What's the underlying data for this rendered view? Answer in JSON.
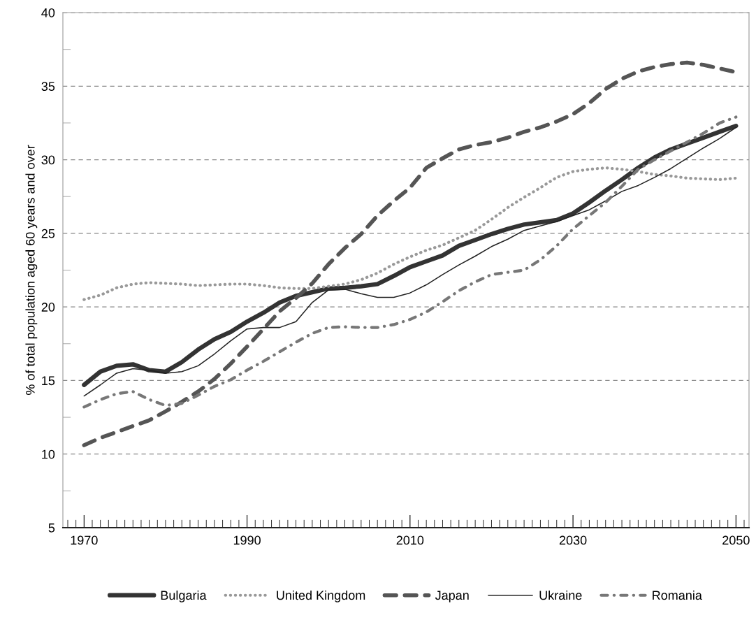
{
  "chart_data": {
    "type": "line",
    "ylabel": "% of total population aged 60 years and over",
    "x": [
      1970,
      1972,
      1974,
      1976,
      1978,
      1980,
      1982,
      1984,
      1986,
      1988,
      1990,
      1992,
      1994,
      1996,
      1998,
      2000,
      2002,
      2004,
      2006,
      2008,
      2010,
      2012,
      2014,
      2016,
      2018,
      2020,
      2022,
      2024,
      2026,
      2028,
      2030,
      2032,
      2034,
      2036,
      2038,
      2040,
      2042,
      2044,
      2046,
      2048,
      2050
    ],
    "series": [
      {
        "name": "Bulgaria",
        "color": "#333333",
        "line_style": "solid",
        "values": [
          14.7,
          15.6,
          16.0,
          16.1,
          15.7,
          15.6,
          16.25,
          17.1,
          17.8,
          18.3,
          19.0,
          19.6,
          20.3,
          20.75,
          21.0,
          21.25,
          21.3,
          21.4,
          21.55,
          22.1,
          22.7,
          23.1,
          23.5,
          24.15,
          24.55,
          24.95,
          25.3,
          25.6,
          25.75,
          25.9,
          26.35,
          27.1,
          27.9,
          28.65,
          29.45,
          30.15,
          30.7,
          31.1,
          31.5,
          31.9,
          32.3
        ]
      },
      {
        "name": "United Kingdom",
        "color": "#999999",
        "line_style": "dotted",
        "values": [
          20.5,
          20.8,
          21.3,
          21.55,
          21.65,
          21.6,
          21.55,
          21.45,
          21.5,
          21.55,
          21.55,
          21.45,
          21.3,
          21.25,
          21.25,
          21.4,
          21.55,
          21.85,
          22.3,
          22.9,
          23.4,
          23.85,
          24.2,
          24.7,
          25.2,
          25.95,
          26.75,
          27.45,
          28.1,
          28.8,
          29.2,
          29.35,
          29.45,
          29.35,
          29.2,
          29.0,
          28.9,
          28.75,
          28.7,
          28.65,
          28.75
        ]
      },
      {
        "name": "Japan",
        "color": "#555555",
        "line_style": "dashed",
        "values": [
          10.6,
          11.1,
          11.5,
          11.9,
          12.3,
          12.9,
          13.55,
          14.25,
          15.1,
          16.15,
          17.3,
          18.5,
          19.7,
          20.6,
          21.6,
          22.9,
          24.0,
          24.95,
          26.2,
          27.2,
          28.1,
          29.45,
          30.1,
          30.7,
          31.0,
          31.2,
          31.5,
          31.9,
          32.2,
          32.6,
          33.1,
          33.85,
          34.8,
          35.5,
          36.0,
          36.3,
          36.5,
          36.6,
          36.45,
          36.2,
          35.95
        ]
      },
      {
        "name": "Ukraine",
        "color": "#222222",
        "line_style": "solid",
        "values": [
          13.95,
          14.7,
          15.5,
          15.8,
          15.7,
          15.5,
          15.6,
          16.0,
          16.8,
          17.7,
          18.5,
          18.6,
          18.6,
          19.0,
          20.3,
          21.15,
          21.2,
          20.9,
          20.65,
          20.65,
          20.95,
          21.5,
          22.2,
          22.85,
          23.45,
          24.1,
          24.6,
          25.2,
          25.5,
          25.8,
          26.2,
          26.6,
          27.2,
          27.85,
          28.25,
          28.8,
          29.4,
          30.1,
          30.8,
          31.45,
          32.2
        ]
      },
      {
        "name": "Romania",
        "color": "#777777",
        "line_style": "dashdot",
        "values": [
          13.2,
          13.7,
          14.1,
          14.25,
          13.7,
          13.3,
          13.45,
          14.0,
          14.6,
          15.05,
          15.7,
          16.3,
          16.95,
          17.6,
          18.2,
          18.6,
          18.65,
          18.6,
          18.6,
          18.8,
          19.15,
          19.65,
          20.35,
          21.1,
          21.7,
          22.2,
          22.35,
          22.5,
          23.2,
          24.15,
          25.3,
          26.2,
          27.1,
          28.2,
          29.35,
          30.0,
          30.6,
          31.2,
          31.8,
          32.5,
          32.9
        ]
      }
    ],
    "xlim": [
      1967.4,
      2051.6
    ],
    "ylim": [
      5,
      40
    ],
    "xticks": [
      1970,
      1990,
      2010,
      2030,
      2050
    ],
    "yticks": [
      5,
      10,
      15,
      20,
      25,
      30,
      35,
      40
    ],
    "grid": "y",
    "legend": "bottom",
    "marker": "none"
  }
}
